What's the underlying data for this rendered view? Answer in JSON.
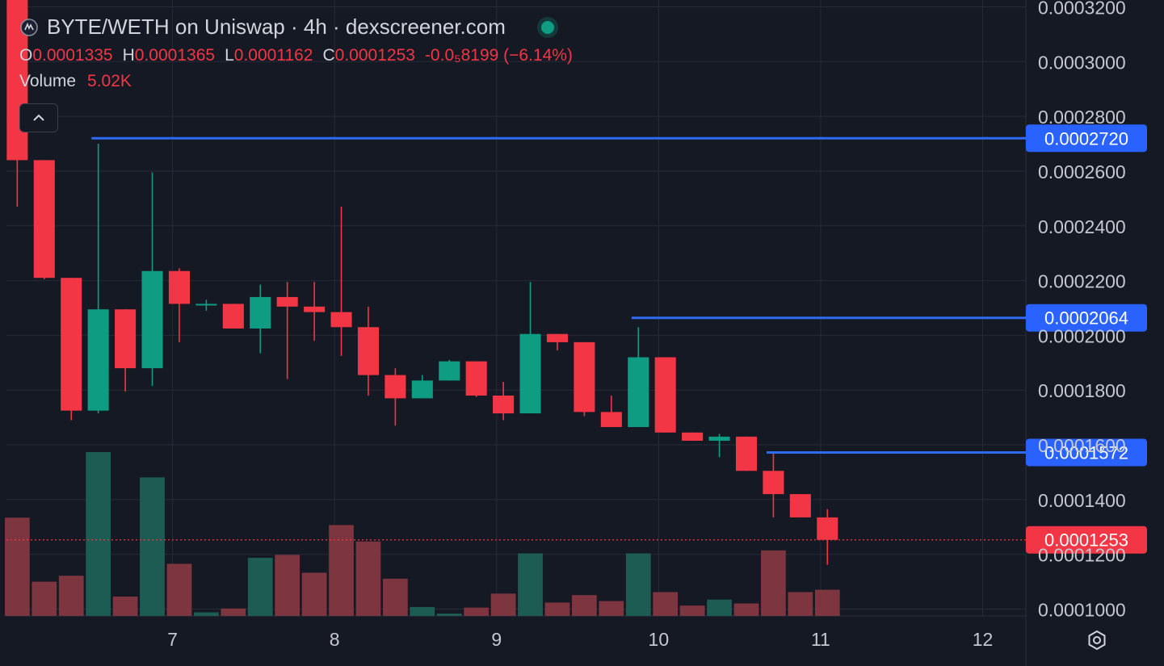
{
  "header": {
    "title": "BYTE/WETH on Uniswap · 4h · dexscreener.com",
    "ohlc": [
      {
        "key": "O",
        "value": "0.0001335"
      },
      {
        "key": "H",
        "value": "0.0001365"
      },
      {
        "key": "L",
        "value": "0.0001162"
      },
      {
        "key": "C",
        "value": "0.0001253"
      }
    ],
    "change": "-0.0₅8199 (−6.14%)",
    "volume_label": "Volume",
    "volume_value": "5.02K"
  },
  "icons": {
    "logo": "byte-token-icon",
    "status": "live-status-dot",
    "collapse": "chevron-up-icon",
    "settings": "gear-icon"
  },
  "colors": {
    "background": "#151923",
    "grid": "#262b38",
    "up": "#0e9c82",
    "down": "#f23645",
    "up_volume": "#1d5c53",
    "down_volume": "#7d3540",
    "hline": "#2f6bf0",
    "label_blue": "#2962ff",
    "price_label": "#f23645",
    "axis_text": "#c5c8d0"
  },
  "chart_data": {
    "type": "candlestick",
    "timeframe": "4h",
    "x_ticks": [
      {
        "label": "7",
        "x": 6.0
      },
      {
        "label": "8",
        "x": 12.0
      },
      {
        "label": "9",
        "x": 18.0
      },
      {
        "label": "10",
        "x": 24.0
      },
      {
        "label": "11",
        "x": 30.0
      },
      {
        "label": "12",
        "x": 36.0
      }
    ],
    "y_ticks": [
      "0.0001000",
      "0.0001200",
      "0.0001400",
      "0.0001600",
      "0.0001800",
      "0.0002000",
      "0.0002200",
      "0.0002400",
      "0.0002600",
      "0.0002800",
      "0.0003000",
      "0.0003200"
    ],
    "y_tick_values": [
      0.0001,
      0.00012,
      0.00014,
      0.00016,
      0.00018,
      0.0002,
      0.00022,
      0.00024,
      0.00026,
      0.00028,
      0.0003,
      0.00032
    ],
    "ylim": [
      9.75e-05,
      0.0003225
    ],
    "candles": [
      {
        "o": 0.00034,
        "h": 0.00035,
        "l": 0.000247,
        "c": 0.000264,
        "v": 3.3
      },
      {
        "o": 0.000264,
        "h": 0.000264,
        "l": 0.0002205,
        "c": 0.000221,
        "v": 1.15
      },
      {
        "o": 0.000221,
        "h": 0.000221,
        "l": 0.000169,
        "c": 0.0001725,
        "v": 1.35
      },
      {
        "o": 0.0001725,
        "h": 0.00027,
        "l": 0.0001715,
        "c": 0.0002095,
        "v": 5.5
      },
      {
        "o": 0.0002095,
        "h": 0.0002095,
        "l": 0.0001795,
        "c": 0.000188,
        "v": 0.65
      },
      {
        "o": 0.000188,
        "h": 0.0002595,
        "l": 0.0001815,
        "c": 0.0002235,
        "v": 4.65
      },
      {
        "o": 0.0002235,
        "h": 0.0002245,
        "l": 0.0001975,
        "c": 0.0002115,
        "v": 1.75
      },
      {
        "o": 0.0002115,
        "h": 0.000213,
        "l": 0.000209,
        "c": 0.0002115,
        "v": 0.12
      },
      {
        "o": 0.0002115,
        "h": 0.0002115,
        "l": 0.0002025,
        "c": 0.0002025,
        "v": 0.25
      },
      {
        "o": 0.0002025,
        "h": 0.0002185,
        "l": 0.0001935,
        "c": 0.000214,
        "v": 1.95
      },
      {
        "o": 0.000214,
        "h": 0.0002195,
        "l": 0.000184,
        "c": 0.0002105,
        "v": 2.05
      },
      {
        "o": 0.0002105,
        "h": 0.0002195,
        "l": 0.000198,
        "c": 0.0002085,
        "v": 1.45
      },
      {
        "o": 0.0002085,
        "h": 0.000247,
        "l": 0.0001925,
        "c": 0.000203,
        "v": 3.05
      },
      {
        "o": 0.000203,
        "h": 0.0002105,
        "l": 0.000178,
        "c": 0.0001855,
        "v": 2.5
      },
      {
        "o": 0.0001855,
        "h": 0.000188,
        "l": 0.000167,
        "c": 0.000177,
        "v": 1.25
      },
      {
        "o": 0.000177,
        "h": 0.0001855,
        "l": 0.000177,
        "c": 0.0001835,
        "v": 0.3
      },
      {
        "o": 0.0001835,
        "h": 0.000191,
        "l": 0.0001835,
        "c": 0.0001905,
        "v": 0.08
      },
      {
        "o": 0.0001905,
        "h": 0.0001905,
        "l": 0.0001775,
        "c": 0.000178,
        "v": 0.28
      },
      {
        "o": 0.000178,
        "h": 0.000183,
        "l": 0.000169,
        "c": 0.0001715,
        "v": 0.75
      },
      {
        "o": 0.0001715,
        "h": 0.0002195,
        "l": 0.0001715,
        "c": 0.0002005,
        "v": 2.1
      },
      {
        "o": 0.0002005,
        "h": 0.0002005,
        "l": 0.0001945,
        "c": 0.0001975,
        "v": 0.45
      },
      {
        "o": 0.0001975,
        "h": 0.0001975,
        "l": 0.0001705,
        "c": 0.000172,
        "v": 0.7
      },
      {
        "o": 0.000172,
        "h": 0.000178,
        "l": 0.0001665,
        "c": 0.0001665,
        "v": 0.5
      },
      {
        "o": 0.0001665,
        "h": 0.000203,
        "l": 0.0001665,
        "c": 0.000192,
        "v": 2.1
      },
      {
        "o": 0.000192,
        "h": 0.000192,
        "l": 0.0001645,
        "c": 0.0001645,
        "v": 0.8
      },
      {
        "o": 0.0001645,
        "h": 0.0001645,
        "l": 0.0001615,
        "c": 0.0001615,
        "v": 0.35
      },
      {
        "o": 0.0001615,
        "h": 0.000164,
        "l": 0.0001555,
        "c": 0.000163,
        "v": 0.55
      },
      {
        "o": 0.000163,
        "h": 0.000163,
        "l": 0.0001505,
        "c": 0.0001505,
        "v": 0.42
      },
      {
        "o": 0.0001505,
        "h": 0.0001572,
        "l": 0.0001335,
        "c": 0.000142,
        "v": 2.2
      },
      {
        "o": 0.000142,
        "h": 0.000142,
        "l": 0.0001335,
        "c": 0.0001335,
        "v": 0.8
      },
      {
        "o": 0.0001335,
        "h": 0.0001365,
        "l": 0.0001162,
        "c": 0.0001253,
        "v": 0.88
      }
    ],
    "first_candle_x": 0.25,
    "candle_step": 1.0,
    "xlim": [
      -0.15,
      37.6
    ],
    "volume_max": 5.5,
    "horizontal_lines": [
      {
        "value": 0.000272,
        "from_x": 3.0,
        "label": "0.0002720"
      },
      {
        "value": 0.0002064,
        "from_x": 23.0,
        "label": "0.0002064"
      },
      {
        "value": 0.0001572,
        "from_x": 28.0,
        "label": "0.0001572"
      }
    ],
    "last_price": {
      "value": 0.0001253,
      "label": "0.0001253"
    },
    "grid": true
  }
}
